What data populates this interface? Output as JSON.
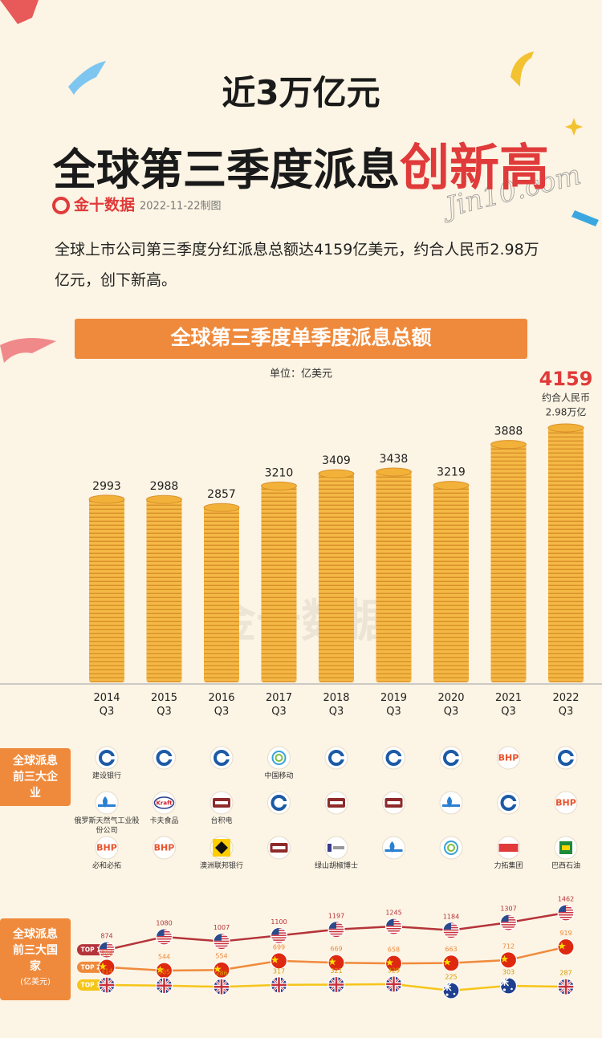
{
  "header": {
    "title_line1": "近3万亿元",
    "title_line2": "全球第三季度派息",
    "title_highlight": "创新高",
    "brand": "金十数据",
    "date": "2022-11-22制图",
    "script_mark": "Jin10.com"
  },
  "description": "全球上市公司第三季度分红派息总额达4159亿美元，约合人民币2.98万亿元，创下新高。",
  "chart_data": [
    {
      "type": "bar",
      "title": "全球第三季度单季度派息总额",
      "subtitle": "单位：亿美元",
      "categories": [
        "2014 Q3",
        "2015 Q3",
        "2016 Q3",
        "2017 Q3",
        "2018 Q3",
        "2019 Q3",
        "2020 Q3",
        "2021 Q3",
        "2022 Q3"
      ],
      "values": [
        2993,
        2988,
        2857,
        3210,
        3409,
        3438,
        3219,
        3888,
        4159
      ],
      "annotation": [
        "约合人民币",
        "2.98万亿"
      ],
      "color": "#f2b23a",
      "highlight_color": "#e03a3a",
      "ylim": [
        0,
        4500
      ]
    },
    {
      "type": "line",
      "title": "全球派息前三大国家",
      "subtitle": "(亿美元)",
      "series": [
        {
          "name": "TOP 1",
          "color": "#b5333a",
          "values": [
            874,
            1080,
            1007,
            1100,
            1197,
            1245,
            1184,
            1307,
            1462
          ]
        },
        {
          "name": "TOP 2",
          "color": "#ef8a3c",
          "values": [
            596,
            544,
            554,
            699,
            669,
            658,
            663,
            712,
            919
          ]
        },
        {
          "name": "TOP 3",
          "color": "#f5c518",
          "values": [
            314,
            305,
            286,
            317,
            321,
            329,
            225,
            303,
            287
          ]
        }
      ],
      "ylim": [
        200,
        1500
      ]
    }
  ],
  "companies": {
    "title": "全球派息前三大企业",
    "rows": [
      [
        {
          "name": "建设银行"
        },
        null,
        null,
        {
          "name": "中国移动"
        },
        null,
        null,
        null,
        {
          "logo": "BHP"
        },
        null
      ],
      [
        {
          "name": "俄罗斯天然气工业股份公司"
        },
        {
          "logo": "Kraft",
          "name": "卡夫食品"
        },
        {
          "name": "台积电"
        },
        null,
        null,
        null,
        null,
        null,
        {
          "logo": "BHP"
        }
      ],
      [
        {
          "logo": "BHP",
          "name": "必和必拓"
        },
        {
          "logo": "BHP"
        },
        {
          "name": "澳洲联邦银行"
        },
        null,
        {
          "name": "绿山胡椒博士"
        },
        null,
        null,
        {
          "name": "力拓集团"
        },
        {
          "name": "巴西石油"
        }
      ]
    ]
  }
}
